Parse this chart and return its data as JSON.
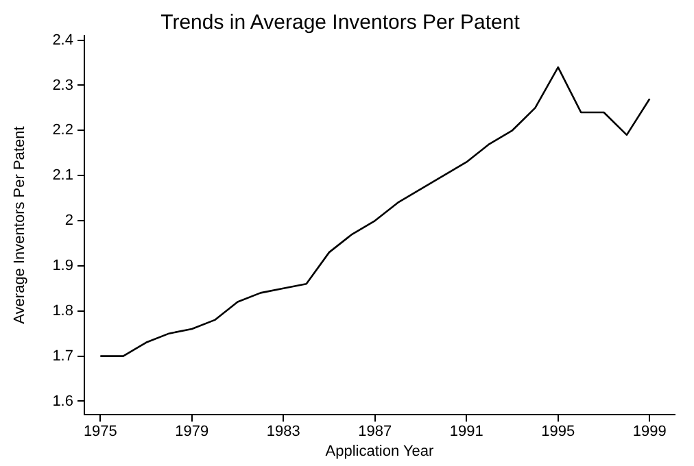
{
  "chart_data": {
    "type": "line",
    "title": "Trends in Average Inventors Per Patent",
    "xlabel": "Application Year",
    "ylabel": "Average Inventors Per Patent",
    "x": [
      1975,
      1976,
      1977,
      1978,
      1979,
      1980,
      1981,
      1982,
      1983,
      1984,
      1985,
      1986,
      1987,
      1988,
      1989,
      1990,
      1991,
      1992,
      1993,
      1994,
      1995,
      1996,
      1997,
      1998,
      1999
    ],
    "series": [
      {
        "color": "#000000",
        "values": [
          1.7,
          1.7,
          1.73,
          1.75,
          1.76,
          1.78,
          1.82,
          1.84,
          1.85,
          1.86,
          1.93,
          1.97,
          2.0,
          2.04,
          2.07,
          2.1,
          2.13,
          2.17,
          2.2,
          2.25,
          2.34,
          2.24,
          2.24,
          2.19,
          2.27
        ]
      }
    ],
    "xlim": [
      1974.3,
      2000.1
    ],
    "xticks": [
      1975,
      1979,
      1983,
      1987,
      1991,
      1995,
      1999
    ],
    "ylim": [
      1.57,
      2.41
    ],
    "yticks": [
      1.6,
      1.7,
      1.8,
      1.9,
      {
        "value": 2,
        "label": "2"
      },
      2.1,
      2.2,
      2.3,
      2.4
    ],
    "grid": false,
    "legend": false,
    "marker": "none",
    "line_style": "solid"
  }
}
